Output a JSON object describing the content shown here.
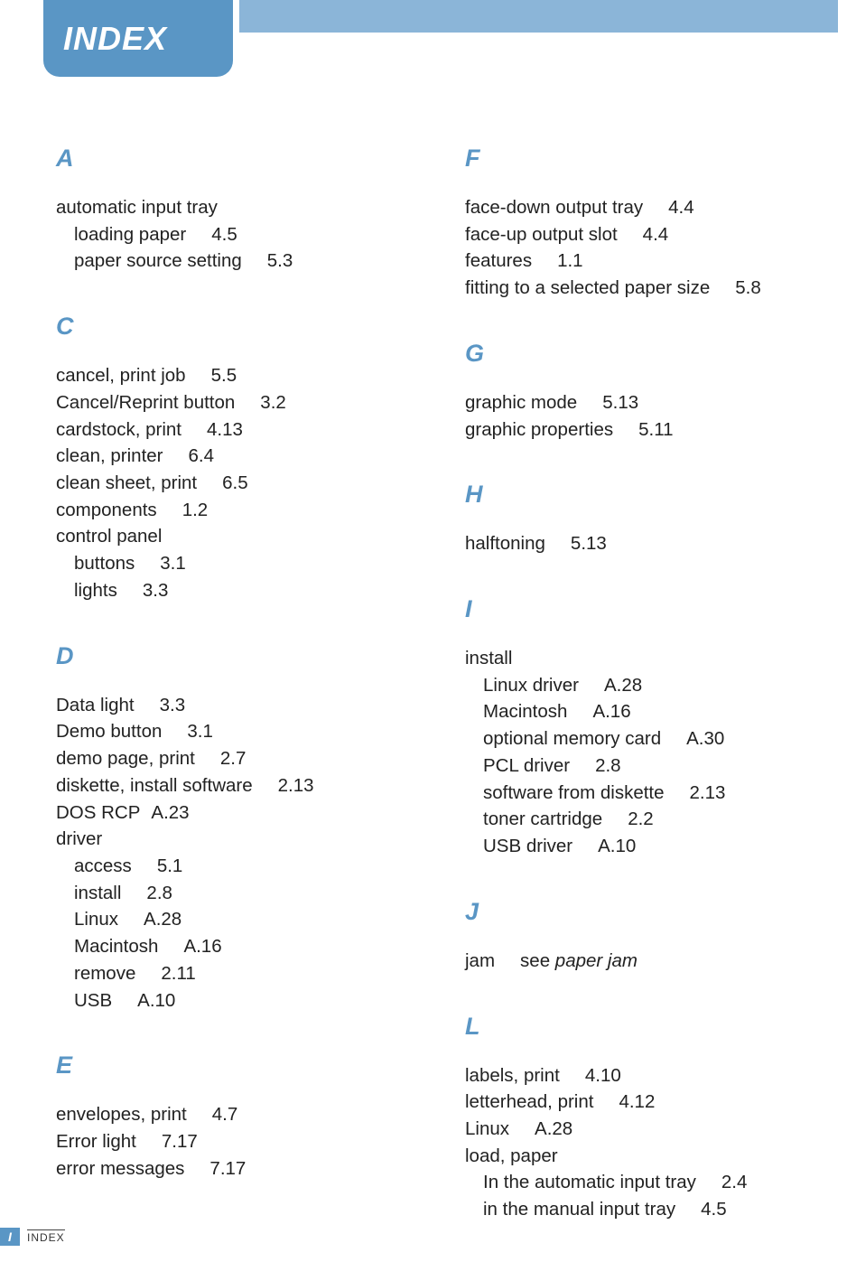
{
  "title": "INDEX",
  "colors": {
    "tab_bg": "#5a96c5",
    "topbar_bg": "#8bb5d8",
    "letter_color": "#5a96c5",
    "text_color": "#222222",
    "page_bg": "#ffffff"
  },
  "typography": {
    "title_fontsize": 36,
    "letter_fontsize": 27,
    "body_fontsize": 20.5
  },
  "columns": [
    [
      {
        "letter": "A",
        "entries": [
          {
            "text": "automatic input tray"
          },
          {
            "text": "loading paper",
            "ref": "4.5",
            "indent": 1
          },
          {
            "text": "paper source setting",
            "ref": "5.3",
            "indent": 1
          }
        ]
      },
      {
        "letter": "C",
        "entries": [
          {
            "text": "cancel, print job",
            "ref": "5.5"
          },
          {
            "text": "Cancel/Reprint button",
            "ref": "3.2"
          },
          {
            "text": "cardstock, print",
            "ref": "4.13"
          },
          {
            "text": "clean, printer",
            "ref": "6.4"
          },
          {
            "text": "clean sheet, print",
            "ref": "6.5"
          },
          {
            "text": "components",
            "ref": "1.2"
          },
          {
            "text": "control panel"
          },
          {
            "text": "buttons",
            "ref": "3.1",
            "indent": 1
          },
          {
            "text": "lights",
            "ref": "3.3",
            "indent": 1
          }
        ]
      },
      {
        "letter": "D",
        "entries": [
          {
            "text": "Data light",
            "ref": "3.3"
          },
          {
            "text": "Demo button",
            "ref": "3.1"
          },
          {
            "text": "demo page, print",
            "ref": "2.7"
          },
          {
            "text": "diskette, install software",
            "ref": "2.13"
          },
          {
            "text": "DOS RCP",
            "ref": "A.23",
            "ref_tight": true
          },
          {
            "text": "driver"
          },
          {
            "text": "access",
            "ref": "5.1",
            "indent": 1
          },
          {
            "text": "install",
            "ref": "2.8",
            "indent": 1
          },
          {
            "text": "Linux",
            "ref": "A.28",
            "indent": 1
          },
          {
            "text": "Macintosh",
            "ref": "A.16",
            "indent": 1
          },
          {
            "text": "remove",
            "ref": "2.11",
            "indent": 1
          },
          {
            "text": "USB",
            "ref": "A.10",
            "indent": 1
          }
        ]
      },
      {
        "letter": "E",
        "entries": [
          {
            "text": "envelopes, print",
            "ref": "4.7"
          },
          {
            "text": "Error light",
            "ref": "7.17"
          },
          {
            "text": "error messages",
            "ref": "7.17"
          }
        ]
      }
    ],
    [
      {
        "letter": "F",
        "entries": [
          {
            "text": "face-down output tray",
            "ref": "4.4"
          },
          {
            "text": "face-up output slot",
            "ref": "4.4"
          },
          {
            "text": "features",
            "ref": "1.1"
          },
          {
            "text": "fitting to a selected paper size",
            "ref": "5.8"
          }
        ]
      },
      {
        "letter": "G",
        "entries": [
          {
            "text": "graphic mode",
            "ref": "5.13"
          },
          {
            "text": "graphic properties",
            "ref": "5.11"
          }
        ]
      },
      {
        "letter": "H",
        "entries": [
          {
            "text": "halftoning",
            "ref": "5.13"
          }
        ]
      },
      {
        "letter": "I",
        "entries": [
          {
            "text": "install"
          },
          {
            "text": "Linux driver",
            "ref": "A.28",
            "indent": 1
          },
          {
            "text": "Macintosh",
            "ref": "A.16",
            "indent": 1
          },
          {
            "text": "optional memory card",
            "ref": "A.30",
            "indent": 1
          },
          {
            "text": "PCL driver",
            "ref": "2.8",
            "indent": 1
          },
          {
            "text": "software from diskette",
            "ref": "2.13",
            "indent": 1
          },
          {
            "text": "toner cartridge",
            "ref": "2.2",
            "indent": 1
          },
          {
            "text": "USB driver",
            "ref": "A.10",
            "indent": 1
          }
        ]
      },
      {
        "letter": "J",
        "entries": [
          {
            "text": "jam",
            "see": "paper jam"
          }
        ]
      },
      {
        "letter": "L",
        "entries": [
          {
            "text": "labels, print",
            "ref": "4.10"
          },
          {
            "text": "letterhead, print",
            "ref": "4.12"
          },
          {
            "text": "Linux",
            "ref": "A.28"
          },
          {
            "text": "load, paper"
          },
          {
            "text": "In the automatic input tray",
            "ref": "2.4",
            "indent": 1
          },
          {
            "text": "in the manual input tray",
            "ref": "4.5",
            "indent": 1
          }
        ]
      }
    ]
  ],
  "footer": {
    "page_marker": "I",
    "label": "INDEX"
  }
}
